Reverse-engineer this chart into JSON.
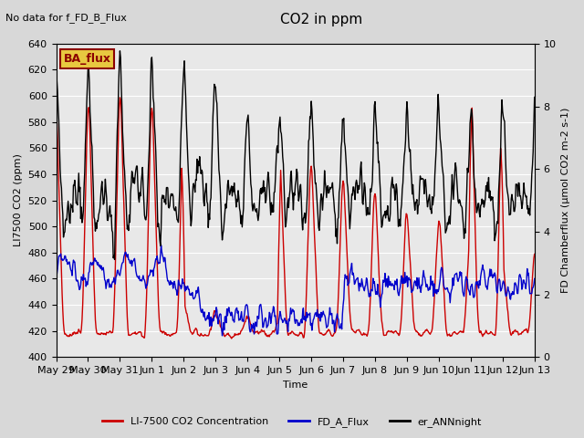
{
  "title": "CO2 in ppm",
  "top_left_text": "No data for f_FD_B_Flux",
  "ba_flux_label": "BA_flux",
  "ylabel_left": "LI7500 CO2 (ppm)",
  "ylabel_right": "FD Chamberflux (μmol CO2 m-2 s-1)",
  "xlabel": "Time",
  "ylim_left": [
    400,
    640
  ],
  "ylim_right": [
    0.0,
    10.0
  ],
  "yticks_left": [
    400,
    420,
    440,
    460,
    480,
    500,
    520,
    540,
    560,
    580,
    600,
    620,
    640
  ],
  "yticks_right": [
    0.0,
    2.0,
    4.0,
    6.0,
    8.0,
    10.0
  ],
  "legend_entries": [
    {
      "label": "LI-7500 CO2 Concentration",
      "color": "#cc0000",
      "lw": 1.0
    },
    {
      "label": "FD_A_Flux",
      "color": "#0000cc",
      "lw": 1.0
    },
    {
      "label": "er_ANNnight",
      "color": "#000000",
      "lw": 1.0
    }
  ],
  "bg_color": "#d8d8d8",
  "plot_bg_color": "#e8e8e8",
  "seed": 42,
  "figsize": [
    6.4,
    4.8
  ],
  "dpi": 100
}
